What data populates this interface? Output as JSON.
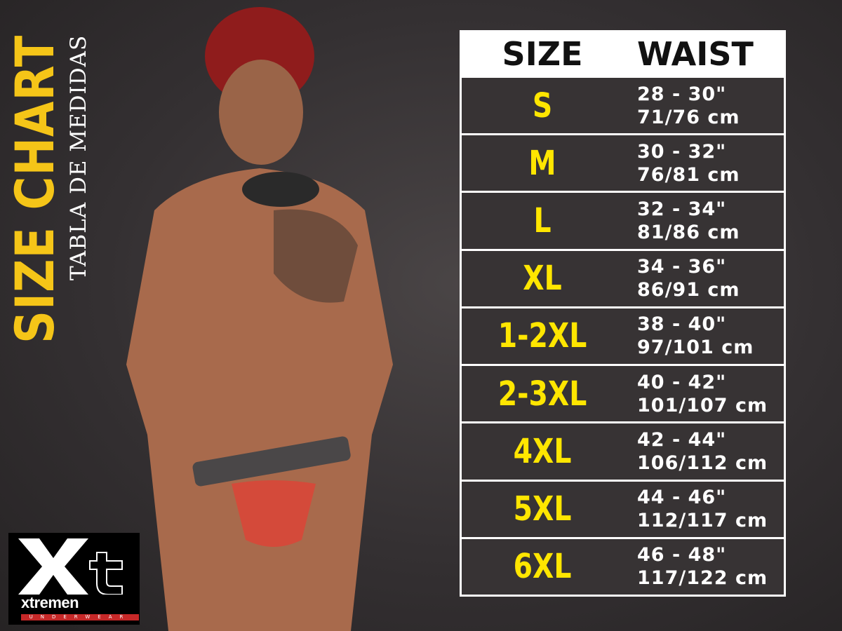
{
  "title": "SIZE CHART",
  "subtitle": "TABLA DE MEDIDAS",
  "table": {
    "headers": {
      "size": "SIZE",
      "waist": "WAIST"
    },
    "rows": [
      {
        "size": "S",
        "inches": "28 - 30\"",
        "cm": "71/76 cm"
      },
      {
        "size": "M",
        "inches": "30 - 32\"",
        "cm": "76/81 cm"
      },
      {
        "size": "L",
        "inches": "32 - 34\"",
        "cm": "81/86 cm"
      },
      {
        "size": "XL",
        "inches": "34 - 36\"",
        "cm": "86/91 cm"
      },
      {
        "size": "1-2XL",
        "inches": "38 - 40\"",
        "cm": "97/101 cm"
      },
      {
        "size": "2-3XL",
        "inches": "40 - 42\"",
        "cm": "101/107 cm"
      },
      {
        "size": "4XL",
        "inches": "42 - 44\"",
        "cm": "106/112 cm"
      },
      {
        "size": "5XL",
        "inches": "44 - 46\"",
        "cm": "112/117 cm"
      },
      {
        "size": "6XL",
        "inches": "46 - 48\"",
        "cm": "117/122 cm"
      }
    ]
  },
  "logo": {
    "mark": "Xt",
    "wordmark": "xtremen",
    "tagline": "UNDERWEAR"
  },
  "colors": {
    "accent": "#f5c518",
    "size_text": "#ffe600",
    "row_bg": "#373334",
    "logo_red": "#c62828"
  }
}
